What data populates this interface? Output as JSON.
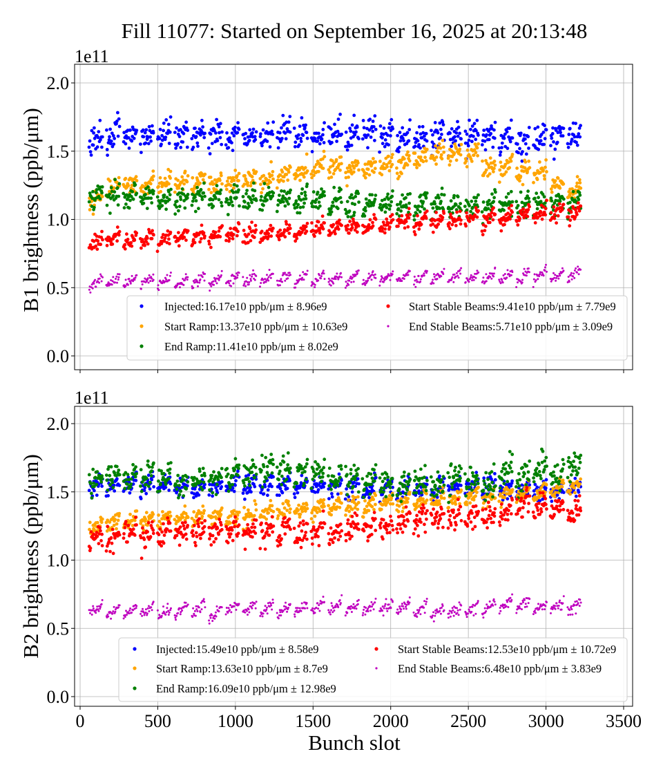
{
  "title": "Fill 11077: Started on September 16, 2025 at 20:13:48",
  "chart_data": [
    {
      "type": "scatter",
      "ylabel": "B1 brightness (ppb/μm)",
      "xlabel": "",
      "offset_label": "1e11",
      "xlim": [
        -20,
        3550
      ],
      "ylim": [
        -0.05,
        2.15
      ],
      "xticks": [
        0,
        500,
        1000,
        1500,
        2000,
        2500,
        3000,
        3500
      ],
      "yticks": [
        "0.0",
        "0.5",
        "1.0",
        "1.5",
        "2.0"
      ],
      "grid": true,
      "legend_position": "lower-right",
      "train_centers": [
        100,
        210,
        320,
        430,
        540,
        650,
        760,
        870,
        980,
        1090,
        1200,
        1310,
        1420,
        1530,
        1640,
        1750,
        1860,
        1970,
        2080,
        2190,
        2300,
        2410,
        2520,
        2630,
        2740,
        2850,
        2960,
        3070,
        3180
      ],
      "series": [
        {
          "name": "Injected:16.17e10 ppb/μm ± 8.96e9",
          "color": "#0000ff",
          "std": 0.0896,
          "values": [
            1.58,
            1.62,
            1.63,
            1.62,
            1.63,
            1.62,
            1.62,
            1.62,
            1.6,
            1.6,
            1.63,
            1.64,
            1.63,
            1.62,
            1.62,
            1.62,
            1.62,
            1.62,
            1.6,
            1.6,
            1.62,
            1.64,
            1.62,
            1.62,
            1.6,
            1.58,
            1.6,
            1.62,
            1.62
          ]
        },
        {
          "name": "Start Ramp:13.37e10 ppb/μm ± 10.63e9",
          "color": "#ffa500",
          "std": 0.06,
          "values": [
            1.15,
            1.24,
            1.25,
            1.25,
            1.27,
            1.27,
            1.28,
            1.28,
            1.28,
            1.3,
            1.3,
            1.33,
            1.35,
            1.38,
            1.38,
            1.37,
            1.38,
            1.4,
            1.4,
            1.45,
            1.48,
            1.48,
            1.47,
            1.38,
            1.4,
            1.35,
            1.35,
            1.25,
            1.2
          ]
        },
        {
          "name": "End Ramp:11.41e10 ppb/μm ± 8.02e9",
          "color": "#008000",
          "std": 0.07,
          "values": [
            1.18,
            1.18,
            1.17,
            1.17,
            1.16,
            1.16,
            1.17,
            1.15,
            1.15,
            1.15,
            1.15,
            1.15,
            1.15,
            1.14,
            1.12,
            1.12,
            1.12,
            1.12,
            1.1,
            1.1,
            1.1,
            1.1,
            1.1,
            1.1,
            1.1,
            1.1,
            1.12,
            1.12,
            1.12
          ]
        },
        {
          "name": "Start Stable Beams:9.41e10 ppb/μm ± 7.79e9",
          "color": "#ff0000",
          "std": 0.05,
          "values": [
            0.84,
            0.86,
            0.86,
            0.87,
            0.86,
            0.88,
            0.88,
            0.88,
            0.9,
            0.9,
            0.9,
            0.92,
            0.92,
            0.93,
            0.94,
            0.94,
            0.95,
            0.96,
            0.98,
            0.98,
            1.0,
            1.0,
            1.02,
            1.0,
            1.02,
            1.04,
            1.04,
            1.06,
            1.06
          ]
        },
        {
          "name": "End Stable Beams:5.71e10 ppb/μm ± 3.09e9",
          "color": "#bf00bf",
          "std": 0.03,
          "values": [
            0.54,
            0.55,
            0.55,
            0.55,
            0.55,
            0.55,
            0.55,
            0.55,
            0.56,
            0.56,
            0.57,
            0.57,
            0.57,
            0.57,
            0.57,
            0.57,
            0.57,
            0.57,
            0.58,
            0.58,
            0.58,
            0.58,
            0.58,
            0.58,
            0.58,
            0.58,
            0.59,
            0.59,
            0.6
          ]
        }
      ]
    },
    {
      "type": "scatter",
      "ylabel": "B2 brightness (ppb/μm)",
      "xlabel": "Bunch slot",
      "offset_label": "1e11",
      "xlim": [
        -20,
        3550
      ],
      "ylim": [
        -0.05,
        2.15
      ],
      "xticks": [
        0,
        500,
        1000,
        1500,
        2000,
        2500,
        3000,
        3500
      ],
      "yticks": [
        "0.0",
        "0.5",
        "1.0",
        "1.5",
        "2.0"
      ],
      "grid": true,
      "legend_position": "lower-right",
      "train_centers": [
        100,
        210,
        320,
        430,
        540,
        650,
        760,
        870,
        980,
        1090,
        1200,
        1310,
        1420,
        1530,
        1640,
        1750,
        1860,
        1970,
        2080,
        2190,
        2300,
        2410,
        2520,
        2630,
        2740,
        2850,
        2960,
        3070,
        3180
      ],
      "series": [
        {
          "name": "Injected:15.49e10 ppb/μm ± 8.58e9",
          "color": "#0000ff",
          "std": 0.06,
          "values": [
            1.55,
            1.55,
            1.56,
            1.55,
            1.57,
            1.55,
            1.54,
            1.54,
            1.55,
            1.55,
            1.55,
            1.55,
            1.55,
            1.55,
            1.55,
            1.53,
            1.52,
            1.52,
            1.52,
            1.52,
            1.53,
            1.53,
            1.55,
            1.55,
            1.52,
            1.52,
            1.5,
            1.5,
            1.52
          ]
        },
        {
          "name": "Start Ramp:13.63e10 ppb/μm ± 8.7e9",
          "color": "#ffa500",
          "std": 0.05,
          "values": [
            1.25,
            1.28,
            1.3,
            1.3,
            1.3,
            1.3,
            1.32,
            1.32,
            1.32,
            1.33,
            1.35,
            1.37,
            1.38,
            1.38,
            1.4,
            1.4,
            1.4,
            1.42,
            1.42,
            1.44,
            1.45,
            1.45,
            1.47,
            1.47,
            1.48,
            1.5,
            1.5,
            1.52,
            1.55
          ]
        },
        {
          "name": "End Ramp:16.09e10 ppb/μm ± 12.98e9",
          "color": "#008000",
          "std": 0.09,
          "values": [
            1.6,
            1.62,
            1.6,
            1.62,
            1.62,
            1.58,
            1.57,
            1.58,
            1.62,
            1.65,
            1.67,
            1.65,
            1.62,
            1.65,
            1.6,
            1.6,
            1.58,
            1.57,
            1.55,
            1.55,
            1.56,
            1.6,
            1.6,
            1.55,
            1.65,
            1.62,
            1.66,
            1.62,
            1.68
          ]
        },
        {
          "name": "Start Stable Beams:12.53e10 ppb/μm ± 10.72e9",
          "color": "#ff0000",
          "std": 0.08,
          "values": [
            1.15,
            1.18,
            1.2,
            1.18,
            1.2,
            1.2,
            1.2,
            1.2,
            1.22,
            1.22,
            1.22,
            1.22,
            1.2,
            1.22,
            1.22,
            1.25,
            1.25,
            1.25,
            1.3,
            1.3,
            1.3,
            1.33,
            1.32,
            1.33,
            1.35,
            1.4,
            1.4,
            1.38,
            1.35
          ]
        },
        {
          "name": "End Stable Beams:6.48e10 ppb/μm ± 3.83e9",
          "color": "#bf00bf",
          "std": 0.035,
          "values": [
            0.64,
            0.63,
            0.63,
            0.63,
            0.62,
            0.64,
            0.64,
            0.61,
            0.65,
            0.65,
            0.65,
            0.64,
            0.64,
            0.66,
            0.66,
            0.65,
            0.65,
            0.66,
            0.66,
            0.64,
            0.62,
            0.63,
            0.64,
            0.65,
            0.68,
            0.68,
            0.65,
            0.66,
            0.66
          ]
        }
      ]
    }
  ]
}
